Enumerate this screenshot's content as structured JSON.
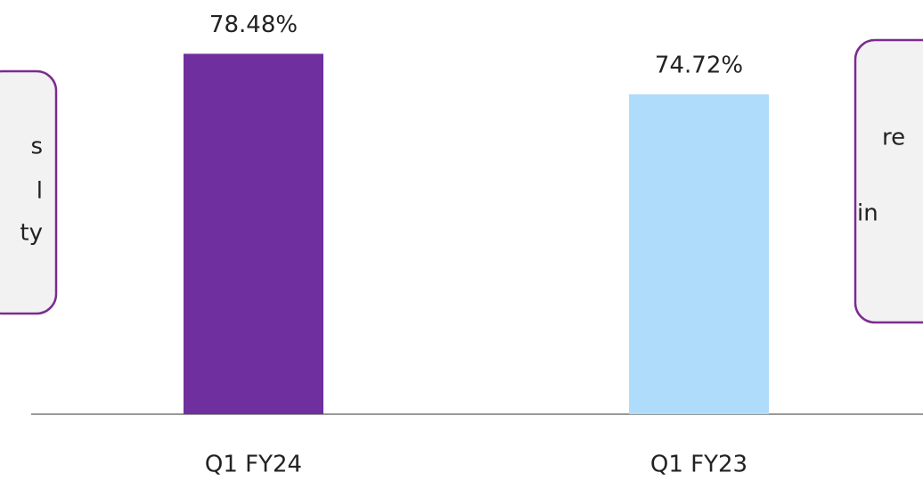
{
  "chart_data": {
    "type": "bar",
    "categories": [
      "Q1 FY24",
      "Q1 FY23"
    ],
    "values": [
      78.48,
      74.72
    ],
    "value_labels": [
      "78.48%",
      "74.72%"
    ],
    "colors": [
      "#6f2f9e",
      "#b0dcfc"
    ],
    "ylim": [
      45,
      80
    ],
    "annotations": [
      [
        "s",
        "l",
        "ty"
      ],
      [
        "re",
        "in"
      ]
    ]
  }
}
